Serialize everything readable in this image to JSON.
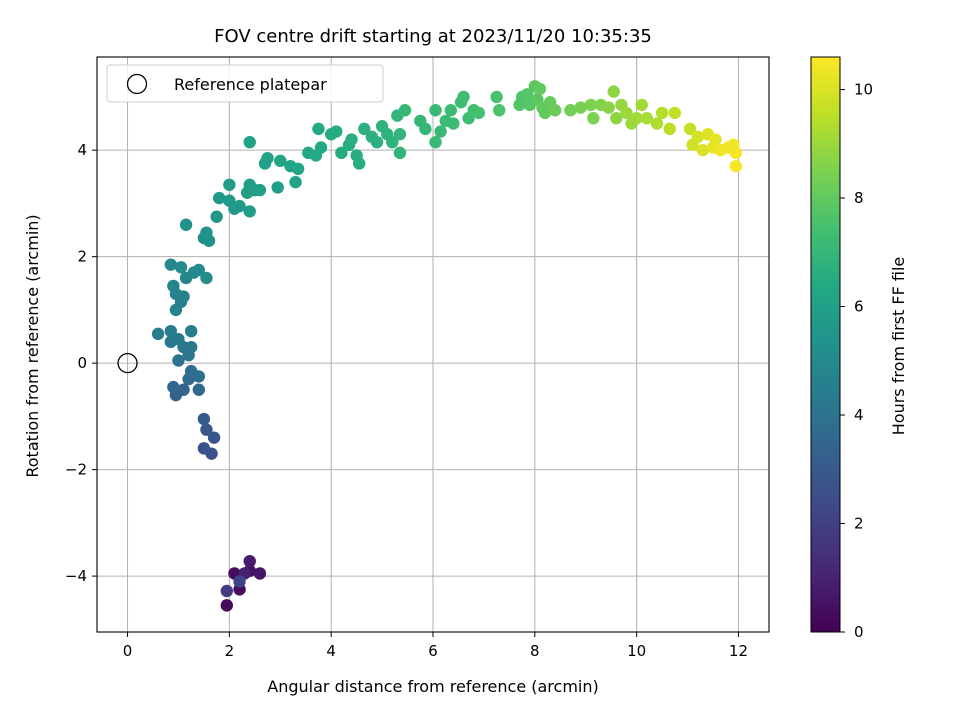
{
  "chart_data": {
    "type": "scatter",
    "title": "FOV centre drift starting at 2023/11/20 10:35:35",
    "xlabel": "Angular distance from reference (arcmin)",
    "ylabel": "Rotation from reference (arcmin)",
    "xlim": [
      -0.6,
      12.6
    ],
    "ylim": [
      -5.05,
      5.75
    ],
    "xticks": [
      0,
      2,
      4,
      6,
      8,
      10,
      12
    ],
    "yticks": [
      -4,
      -2,
      0,
      2,
      4
    ],
    "grid": true,
    "legend": {
      "placement": "top-left",
      "entries": [
        "Reference platepar"
      ]
    },
    "reference_point": {
      "x": 0,
      "y": 0,
      "label": "Reference platepar"
    },
    "colorbar": {
      "label": "Hours from first FF file",
      "range": [
        0,
        10.6
      ],
      "ticks": [
        0,
        2,
        4,
        6,
        8,
        10
      ],
      "colormap": [
        "#440154",
        "#482475",
        "#414487",
        "#355f8d",
        "#2a788e",
        "#21918c",
        "#22a884",
        "#44bf70",
        "#7ad151",
        "#bddf26",
        "#fde725"
      ]
    },
    "series": [
      {
        "points": [
          {
            "x": 1.95,
            "y": -4.55,
            "t": 0.2
          },
          {
            "x": 2.2,
            "y": -4.25,
            "t": 0.3
          },
          {
            "x": 2.1,
            "y": -3.95,
            "t": 0.4
          },
          {
            "x": 2.4,
            "y": -3.9,
            "t": 0.5
          },
          {
            "x": 2.6,
            "y": -3.95,
            "t": 0.6
          },
          {
            "x": 2.4,
            "y": -3.72,
            "t": 0.8
          },
          {
            "x": 2.3,
            "y": -3.95,
            "t": 0.9
          },
          {
            "x": 1.95,
            "y": -4.28,
            "t": 1.9
          },
          {
            "x": 2.2,
            "y": -4.1,
            "t": 2.1
          },
          {
            "x": 1.65,
            "y": -1.7,
            "t": 2.6
          },
          {
            "x": 1.5,
            "y": -1.6,
            "t": 2.7
          },
          {
            "x": 1.7,
            "y": -1.4,
            "t": 2.8
          },
          {
            "x": 1.55,
            "y": -1.25,
            "t": 2.9
          },
          {
            "x": 1.5,
            "y": -1.05,
            "t": 3.0
          },
          {
            "x": 0.95,
            "y": -0.6,
            "t": 3.3
          },
          {
            "x": 1.1,
            "y": -0.5,
            "t": 3.4
          },
          {
            "x": 0.9,
            "y": -0.45,
            "t": 3.5
          },
          {
            "x": 1.4,
            "y": -0.5,
            "t": 3.6
          },
          {
            "x": 1.2,
            "y": -0.3,
            "t": 3.7
          },
          {
            "x": 1.4,
            "y": -0.25,
            "t": 3.8
          },
          {
            "x": 1.25,
            "y": -0.15,
            "t": 3.8
          },
          {
            "x": 1.0,
            "y": 0.05,
            "t": 4.0
          },
          {
            "x": 1.2,
            "y": 0.15,
            "t": 4.1
          },
          {
            "x": 1.1,
            "y": 0.3,
            "t": 4.2
          },
          {
            "x": 1.25,
            "y": 0.3,
            "t": 4.2
          },
          {
            "x": 0.85,
            "y": 0.4,
            "t": 4.3
          },
          {
            "x": 1.0,
            "y": 0.45,
            "t": 4.3
          },
          {
            "x": 0.6,
            "y": 0.55,
            "t": 4.4
          },
          {
            "x": 0.85,
            "y": 0.6,
            "t": 4.4
          },
          {
            "x": 1.25,
            "y": 0.6,
            "t": 4.5
          },
          {
            "x": 0.95,
            "y": 1.0,
            "t": 4.6
          },
          {
            "x": 1.05,
            "y": 1.15,
            "t": 4.6
          },
          {
            "x": 1.1,
            "y": 1.25,
            "t": 4.7
          },
          {
            "x": 0.95,
            "y": 1.3,
            "t": 4.7
          },
          {
            "x": 0.9,
            "y": 1.45,
            "t": 4.8
          },
          {
            "x": 1.15,
            "y": 1.6,
            "t": 4.8
          },
          {
            "x": 1.3,
            "y": 1.7,
            "t": 4.9
          },
          {
            "x": 0.85,
            "y": 1.85,
            "t": 4.9
          },
          {
            "x": 1.05,
            "y": 1.8,
            "t": 5.0
          },
          {
            "x": 1.4,
            "y": 1.75,
            "t": 5.0
          },
          {
            "x": 1.55,
            "y": 1.6,
            "t": 5.1
          },
          {
            "x": 1.5,
            "y": 2.35,
            "t": 5.3
          },
          {
            "x": 1.6,
            "y": 2.3,
            "t": 5.3
          },
          {
            "x": 1.55,
            "y": 2.45,
            "t": 5.4
          },
          {
            "x": 1.15,
            "y": 2.6,
            "t": 5.4
          },
          {
            "x": 1.75,
            "y": 2.75,
            "t": 5.5
          },
          {
            "x": 1.8,
            "y": 3.1,
            "t": 5.6
          },
          {
            "x": 2.0,
            "y": 3.05,
            "t": 5.7
          },
          {
            "x": 2.2,
            "y": 2.95,
            "t": 5.7
          },
          {
            "x": 2.1,
            "y": 2.9,
            "t": 5.7
          },
          {
            "x": 2.4,
            "y": 2.85,
            "t": 5.8
          },
          {
            "x": 2.0,
            "y": 3.35,
            "t": 5.8
          },
          {
            "x": 2.35,
            "y": 3.2,
            "t": 5.9
          },
          {
            "x": 2.5,
            "y": 3.25,
            "t": 5.9
          },
          {
            "x": 2.4,
            "y": 3.35,
            "t": 5.9
          },
          {
            "x": 2.6,
            "y": 3.25,
            "t": 6.0
          },
          {
            "x": 2.95,
            "y": 3.3,
            "t": 6.0
          },
          {
            "x": 2.4,
            "y": 4.15,
            "t": 6.1
          },
          {
            "x": 2.7,
            "y": 3.75,
            "t": 6.1
          },
          {
            "x": 2.75,
            "y": 3.85,
            "t": 6.1
          },
          {
            "x": 3.0,
            "y": 3.8,
            "t": 6.2
          },
          {
            "x": 3.2,
            "y": 3.7,
            "t": 6.2
          },
          {
            "x": 3.3,
            "y": 3.4,
            "t": 6.2
          },
          {
            "x": 3.35,
            "y": 3.65,
            "t": 6.3
          },
          {
            "x": 3.55,
            "y": 3.95,
            "t": 6.3
          },
          {
            "x": 3.7,
            "y": 3.9,
            "t": 6.4
          },
          {
            "x": 3.8,
            "y": 4.05,
            "t": 6.4
          },
          {
            "x": 3.75,
            "y": 4.4,
            "t": 6.4
          },
          {
            "x": 4.0,
            "y": 4.3,
            "t": 6.5
          },
          {
            "x": 4.1,
            "y": 4.35,
            "t": 6.5
          },
          {
            "x": 4.2,
            "y": 3.95,
            "t": 6.5
          },
          {
            "x": 4.35,
            "y": 4.1,
            "t": 6.5
          },
          {
            "x": 4.4,
            "y": 4.2,
            "t": 6.6
          },
          {
            "x": 4.5,
            "y": 3.9,
            "t": 6.6
          },
          {
            "x": 4.55,
            "y": 3.75,
            "t": 6.6
          },
          {
            "x": 4.65,
            "y": 4.4,
            "t": 6.7
          },
          {
            "x": 4.8,
            "y": 4.25,
            "t": 6.7
          },
          {
            "x": 4.9,
            "y": 4.15,
            "t": 6.7
          },
          {
            "x": 5.0,
            "y": 4.45,
            "t": 6.8
          },
          {
            "x": 5.1,
            "y": 4.3,
            "t": 6.8
          },
          {
            "x": 5.2,
            "y": 4.15,
            "t": 6.8
          },
          {
            "x": 5.35,
            "y": 4.3,
            "t": 6.9
          },
          {
            "x": 5.35,
            "y": 3.95,
            "t": 6.9
          },
          {
            "x": 5.3,
            "y": 4.65,
            "t": 6.9
          },
          {
            "x": 5.45,
            "y": 4.75,
            "t": 7.0
          },
          {
            "x": 5.75,
            "y": 4.55,
            "t": 7.0
          },
          {
            "x": 5.85,
            "y": 4.4,
            "t": 7.0
          },
          {
            "x": 6.05,
            "y": 4.75,
            "t": 7.1
          },
          {
            "x": 6.05,
            "y": 4.15,
            "t": 7.1
          },
          {
            "x": 6.15,
            "y": 4.35,
            "t": 7.1
          },
          {
            "x": 6.25,
            "y": 4.55,
            "t": 7.2
          },
          {
            "x": 6.35,
            "y": 4.75,
            "t": 7.2
          },
          {
            "x": 6.4,
            "y": 4.5,
            "t": 7.2
          },
          {
            "x": 6.55,
            "y": 4.9,
            "t": 7.3
          },
          {
            "x": 6.6,
            "y": 5.0,
            "t": 7.3
          },
          {
            "x": 6.7,
            "y": 4.6,
            "t": 7.3
          },
          {
            "x": 6.8,
            "y": 4.75,
            "t": 7.4
          },
          {
            "x": 6.9,
            "y": 4.7,
            "t": 7.4
          },
          {
            "x": 7.25,
            "y": 5.0,
            "t": 7.5
          },
          {
            "x": 7.3,
            "y": 4.75,
            "t": 7.6
          },
          {
            "x": 7.7,
            "y": 4.85,
            "t": 7.7
          },
          {
            "x": 7.75,
            "y": 5.0,
            "t": 7.7
          },
          {
            "x": 7.85,
            "y": 5.05,
            "t": 7.8
          },
          {
            "x": 7.9,
            "y": 4.85,
            "t": 7.8
          },
          {
            "x": 8.0,
            "y": 5.2,
            "t": 7.9
          },
          {
            "x": 8.05,
            "y": 4.95,
            "t": 7.9
          },
          {
            "x": 8.1,
            "y": 5.15,
            "t": 8.0
          },
          {
            "x": 8.15,
            "y": 4.8,
            "t": 8.0
          },
          {
            "x": 8.2,
            "y": 4.7,
            "t": 8.0
          },
          {
            "x": 8.3,
            "y": 4.9,
            "t": 8.1
          },
          {
            "x": 8.4,
            "y": 4.75,
            "t": 8.2
          },
          {
            "x": 8.7,
            "y": 4.75,
            "t": 8.3
          },
          {
            "x": 8.9,
            "y": 4.8,
            "t": 8.4
          },
          {
            "x": 9.1,
            "y": 4.85,
            "t": 8.5
          },
          {
            "x": 9.15,
            "y": 4.6,
            "t": 8.5
          },
          {
            "x": 9.3,
            "y": 4.85,
            "t": 8.6
          },
          {
            "x": 9.45,
            "y": 4.8,
            "t": 8.7
          },
          {
            "x": 9.55,
            "y": 5.1,
            "t": 8.8
          },
          {
            "x": 9.6,
            "y": 4.6,
            "t": 8.8
          },
          {
            "x": 9.7,
            "y": 4.85,
            "t": 8.9
          },
          {
            "x": 9.8,
            "y": 4.7,
            "t": 9.0
          },
          {
            "x": 9.9,
            "y": 4.5,
            "t": 9.0
          },
          {
            "x": 10.0,
            "y": 4.6,
            "t": 9.1
          },
          {
            "x": 10.1,
            "y": 4.85,
            "t": 9.1
          },
          {
            "x": 10.2,
            "y": 4.6,
            "t": 9.2
          },
          {
            "x": 10.4,
            "y": 4.5,
            "t": 9.3
          },
          {
            "x": 10.5,
            "y": 4.7,
            "t": 9.4
          },
          {
            "x": 10.65,
            "y": 4.4,
            "t": 9.5
          },
          {
            "x": 10.75,
            "y": 4.7,
            "t": 9.6
          },
          {
            "x": 11.05,
            "y": 4.4,
            "t": 9.7
          },
          {
            "x": 11.1,
            "y": 4.1,
            "t": 9.8
          },
          {
            "x": 11.2,
            "y": 4.25,
            "t": 9.9
          },
          {
            "x": 11.3,
            "y": 4.0,
            "t": 10.0
          },
          {
            "x": 11.4,
            "y": 4.3,
            "t": 10.1
          },
          {
            "x": 11.5,
            "y": 4.05,
            "t": 10.2
          },
          {
            "x": 11.55,
            "y": 4.2,
            "t": 10.2
          },
          {
            "x": 11.65,
            "y": 4.0,
            "t": 10.3
          },
          {
            "x": 11.8,
            "y": 4.05,
            "t": 10.4
          },
          {
            "x": 11.9,
            "y": 4.1,
            "t": 10.4
          },
          {
            "x": 11.95,
            "y": 3.95,
            "t": 10.5
          },
          {
            "x": 11.95,
            "y": 3.7,
            "t": 10.5
          }
        ]
      }
    ]
  }
}
